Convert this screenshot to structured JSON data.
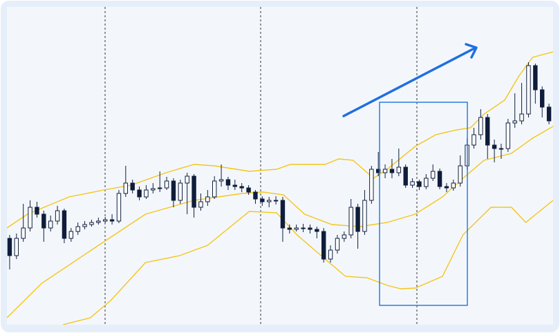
{
  "chart_data": {
    "type": "candlestick",
    "xlim": [
      -0.4,
      79.6
    ],
    "ylim": [
      0,
      460
    ],
    "up_color": "#ffffff",
    "down_color": "#0f1d3a",
    "band_color": "#f5c518",
    "ohlc": [
      [
        125,
        130,
        80,
        100
      ],
      [
        100,
        132,
        95,
        125
      ],
      [
        125,
        175,
        120,
        140
      ],
      [
        140,
        180,
        135,
        170
      ],
      [
        170,
        178,
        155,
        160
      ],
      [
        160,
        165,
        120,
        140
      ],
      [
        140,
        158,
        135,
        150
      ],
      [
        150,
        172,
        145,
        165
      ],
      [
        165,
        168,
        118,
        125
      ],
      [
        125,
        140,
        120,
        135
      ],
      [
        135,
        148,
        130,
        142
      ],
      [
        142,
        150,
        138,
        145
      ],
      [
        145,
        152,
        142,
        148
      ],
      [
        148,
        155,
        145,
        150
      ],
      [
        150,
        156,
        147,
        152
      ],
      [
        152,
        160,
        145,
        150
      ],
      [
        150,
        195,
        147,
        190
      ],
      [
        190,
        230,
        185,
        205
      ],
      [
        205,
        210,
        190,
        195
      ],
      [
        195,
        200,
        180,
        185
      ],
      [
        185,
        202,
        182,
        195
      ],
      [
        195,
        205,
        190,
        197
      ],
      [
        197,
        222,
        192,
        198
      ],
      [
        198,
        214,
        195,
        208
      ],
      [
        208,
        212,
        170,
        180
      ],
      [
        180,
        210,
        175,
        205
      ],
      [
        205,
        220,
        160,
        215
      ],
      [
        215,
        218,
        155,
        170
      ],
      [
        170,
        190,
        165,
        178
      ],
      [
        178,
        195,
        172,
        185
      ],
      [
        185,
        215,
        182,
        208
      ],
      [
        208,
        232,
        200,
        210
      ],
      [
        210,
        214,
        195,
        202
      ],
      [
        202,
        210,
        195,
        200
      ],
      [
        200,
        205,
        192,
        198
      ],
      [
        198,
        202,
        188,
        192
      ],
      [
        192,
        195,
        175,
        182
      ],
      [
        182,
        186,
        172,
        178
      ],
      [
        178,
        185,
        170,
        180
      ],
      [
        180,
        186,
        174,
        180
      ],
      [
        180,
        185,
        120,
        140
      ],
      [
        140,
        145,
        132,
        138
      ],
      [
        138,
        145,
        135,
        140
      ],
      [
        140,
        146,
        134,
        140
      ],
      [
        140,
        145,
        132,
        138
      ],
      [
        138,
        142,
        125,
        135
      ],
      [
        135,
        140,
        90,
        95
      ],
      [
        95,
        115,
        90,
        108
      ],
      [
        108,
        130,
        103,
        125
      ],
      [
        125,
        135,
        120,
        130
      ],
      [
        130,
        182,
        125,
        170
      ],
      [
        170,
        175,
        110,
        135
      ],
      [
        135,
        195,
        130,
        180
      ],
      [
        180,
        230,
        175,
        225
      ],
      [
        225,
        250,
        215,
        220
      ],
      [
        220,
        232,
        212,
        225
      ],
      [
        225,
        240,
        212,
        220
      ],
      [
        220,
        255,
        215,
        228
      ],
      [
        228,
        232,
        198,
        202
      ],
      [
        202,
        212,
        198,
        207
      ],
      [
        207,
        210,
        195,
        200
      ],
      [
        200,
        218,
        196,
        212
      ],
      [
        212,
        232,
        208,
        222
      ],
      [
        222,
        226,
        196,
        200
      ],
      [
        200,
        205,
        192,
        198
      ],
      [
        198,
        210,
        194,
        205
      ],
      [
        205,
        245,
        200,
        230
      ],
      [
        230,
        270,
        225,
        260
      ],
      [
        260,
        285,
        255,
        275
      ],
      [
        275,
        312,
        268,
        300
      ],
      [
        300,
        305,
        240,
        260
      ],
      [
        260,
        268,
        235,
        255
      ],
      [
        255,
        262,
        240,
        255
      ],
      [
        255,
        298,
        250,
        292
      ],
      [
        292,
        335,
        285,
        295
      ],
      [
        295,
        350,
        290,
        305
      ],
      [
        305,
        380,
        300,
        375
      ],
      [
        375,
        378,
        320,
        340
      ],
      [
        340,
        345,
        300,
        315
      ],
      [
        315,
        320,
        290,
        295
      ]
    ],
    "bands": [
      {
        "x": [
          -0.4,
          2.6,
          8.7,
          13.8,
          17.8,
          22.9,
          27,
          30,
          35.1,
          39.1,
          41.1,
          46.2,
          48.2,
          50.3,
          53.3,
          55.3,
          59.4,
          62.4,
          65.5,
          67.5,
          69.5,
          72.5,
          74.6,
          76.6,
          79.6
        ],
        "values": [
          140,
          160,
          185,
          195,
          202,
          220,
          232,
          230,
          222,
          225,
          232,
          232,
          240,
          238,
          212,
          225,
          258,
          275,
          282,
          285,
          305,
          325,
          360,
          387,
          395
        ]
      },
      {
        "x": [
          -0.4,
          4.7,
          13.8,
          19.9,
          27,
          34.1,
          37.1,
          40.1,
          43.2,
          47.2,
          51.3,
          55.3,
          59.4,
          63.4,
          66.4,
          69.5,
          73.5,
          76.6,
          79.6
        ],
        "values": [
          10,
          60,
          120,
          160,
          180,
          190,
          192,
          188,
          160,
          145,
          142,
          148,
          160,
          185,
          212,
          238,
          248,
          270,
          287
        ]
      },
      {
        "x": [
          7.8,
          11.8,
          14.8,
          19.9,
          24.9,
          29,
          35.1,
          39.1,
          42.1,
          46.2,
          49.2,
          52.3,
          55.3,
          57.3,
          59.4,
          63.4,
          66.4,
          70.5,
          73.5,
          75.6,
          79.6
        ],
        "values": [
          0,
          10,
          35,
          90,
          100,
          115,
          164,
          162,
          130,
          95,
          70,
          68,
          57,
          52,
          53,
          70,
          130,
          170,
          170,
          148,
          180
        ]
      }
    ]
  }
}
